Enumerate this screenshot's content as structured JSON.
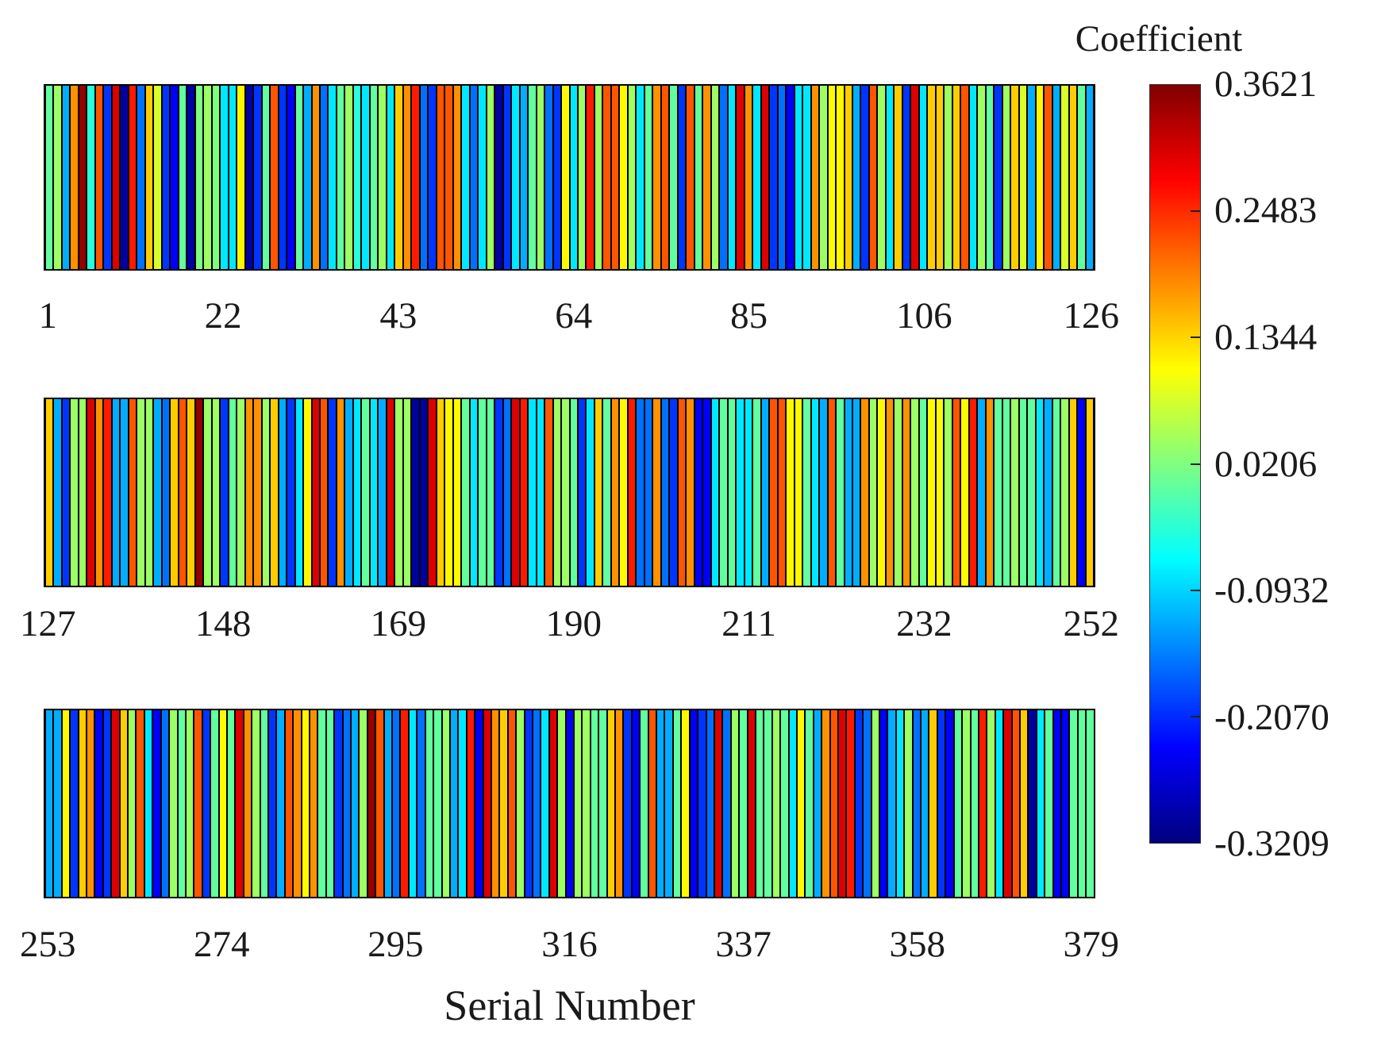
{
  "chart_data": {
    "type": "heatmap",
    "title": "",
    "xlabel": "Serial Number",
    "grid": false,
    "colorbar": {
      "label": "Coefficient",
      "colormap": "jet",
      "min": -0.3209,
      "max": 0.3621,
      "tick_labels": [
        "0.3621",
        "0.2483",
        "0.1344",
        "0.0206",
        "-0.0932",
        "-0.2070",
        "-0.3209"
      ]
    },
    "rows": [
      {
        "start": 1,
        "end": 126,
        "tick_serials": [
          1,
          22,
          43,
          64,
          85,
          106,
          126
        ],
        "values": [
          0.0,
          0.04,
          -0.12,
          0.18,
          0.35,
          -0.04,
          0.22,
          -0.2,
          0.3,
          -0.3,
          0.26,
          -0.16,
          0.14,
          0.08,
          -0.2,
          -0.24,
          0.0,
          -0.3,
          0.02,
          0.04,
          0.02,
          -0.08,
          -0.08,
          0.11,
          -0.3,
          -0.2,
          0.0,
          0.22,
          -0.2,
          -0.24,
          0.0,
          -0.12,
          0.18,
          -0.16,
          -0.08,
          0.0,
          0.04,
          -0.04,
          -0.08,
          0.0,
          0.04,
          -0.08,
          0.14,
          0.18,
          0.26,
          -0.16,
          -0.2,
          0.22,
          0.22,
          0.18,
          -0.08,
          -0.16,
          -0.08,
          0.04,
          -0.3,
          -0.2,
          -0.08,
          -0.12,
          0.0,
          0.04,
          -0.16,
          -0.2,
          0.11,
          -0.08,
          0.04,
          0.26,
          0.04,
          0.22,
          0.22,
          0.11,
          0.04,
          -0.08,
          0.0,
          0.18,
          0.22,
          0.0,
          -0.2,
          0.22,
          0.0,
          0.18,
          0.04,
          -0.16,
          -0.08,
          0.3,
          0.18,
          -0.08,
          0.3,
          -0.2,
          -0.16,
          -0.24,
          -0.08,
          -0.08,
          0.18,
          0.04,
          0.11,
          0.11,
          0.14,
          -0.12,
          -0.2,
          0.22,
          0.04,
          -0.08,
          0.14,
          -0.2,
          0.3,
          -0.08,
          0.14,
          0.14,
          0.04,
          0.14,
          0.22,
          -0.08,
          0.04,
          0.0,
          -0.2,
          0.04,
          0.14,
          0.08,
          -0.12,
          0.11,
          0.22,
          -0.12,
          0.08,
          0.14,
          0.0,
          -0.12
        ]
      },
      {
        "start": 127,
        "end": 252,
        "tick_serials": [
          127,
          148,
          169,
          190,
          211,
          232,
          252
        ],
        "values": [
          0.14,
          -0.12,
          -0.2,
          0.04,
          0.04,
          0.3,
          0.18,
          0.26,
          -0.12,
          -0.12,
          0.22,
          0.04,
          0.04,
          -0.12,
          -0.16,
          0.14,
          0.22,
          0.14,
          0.35,
          0.04,
          0.04,
          -0.2,
          0.0,
          0.04,
          0.18,
          0.18,
          0.04,
          0.14,
          -0.12,
          -0.2,
          -0.08,
          0.11,
          0.3,
          0.22,
          -0.2,
          0.18,
          -0.12,
          -0.08,
          0.0,
          -0.08,
          -0.12,
          0.3,
          0.04,
          0.04,
          -0.3,
          -0.3,
          0.3,
          0.14,
          0.11,
          0.11,
          0.0,
          -0.08,
          0.0,
          0.0,
          -0.2,
          -0.16,
          0.3,
          0.26,
          -0.08,
          -0.08,
          0.22,
          0.04,
          0.04,
          0.0,
          -0.2,
          -0.08,
          0.14,
          0.0,
          0.18,
          0.11,
          0.26,
          -0.16,
          -0.16,
          0.18,
          -0.16,
          -0.2,
          0.22,
          0.18,
          -0.24,
          -0.24,
          -0.08,
          0.0,
          0.0,
          -0.08,
          -0.08,
          0.0,
          -0.12,
          0.22,
          0.22,
          0.11,
          0.11,
          0.0,
          -0.08,
          -0.12,
          0.22,
          0.0,
          -0.12,
          -0.12,
          0.18,
          0.04,
          0.11,
          0.18,
          0.04,
          0.18,
          0.04,
          0.0,
          0.11,
          0.11,
          0.04,
          0.22,
          0.11,
          0.26,
          -0.12,
          0.18,
          0.0,
          0.0,
          0.04,
          0.0,
          0.0,
          -0.08,
          -0.12,
          0.0,
          0.04,
          0.14,
          -0.24,
          0.14
        ]
      },
      {
        "start": 253,
        "end": 379,
        "tick_serials": [
          253,
          274,
          295,
          316,
          337,
          358,
          379
        ],
        "values": [
          -0.12,
          -0.12,
          0.11,
          -0.2,
          0.14,
          0.18,
          -0.24,
          -0.2,
          0.3,
          0.14,
          0.04,
          0.22,
          -0.08,
          -0.24,
          -0.16,
          0.04,
          0.0,
          0.04,
          0.22,
          -0.2,
          0.0,
          0.11,
          0.0,
          0.3,
          0.18,
          0.04,
          0.0,
          -0.2,
          -0.12,
          0.22,
          0.18,
          0.11,
          0.18,
          0.0,
          0.0,
          -0.2,
          -0.16,
          -0.12,
          0.04,
          0.35,
          0.22,
          -0.12,
          -0.16,
          0.26,
          -0.08,
          -0.16,
          0.0,
          0.0,
          0.04,
          -0.12,
          -0.08,
          0.26,
          -0.24,
          0.3,
          0.18,
          0.14,
          0.22,
          0.04,
          -0.2,
          -0.16,
          -0.08,
          0.3,
          0.04,
          -0.24,
          0.04,
          0.04,
          0.0,
          0.0,
          0.14,
          0.18,
          -0.2,
          -0.24,
          0.0,
          0.22,
          -0.12,
          -0.12,
          0.0,
          0.11,
          -0.24,
          -0.2,
          -0.16,
          0.3,
          -0.16,
          0.04,
          0.0,
          0.3,
          0.0,
          0.0,
          0.04,
          0.0,
          -0.08,
          0.11,
          0.0,
          -0.12,
          0.18,
          0.22,
          0.3,
          0.26,
          -0.2,
          -0.16,
          0.04,
          -0.24,
          -0.12,
          -0.08,
          0.04,
          -0.16,
          -0.12,
          0.14,
          -0.2,
          -0.24,
          0.0,
          0.04,
          0.0,
          0.26,
          0.04,
          -0.08,
          0.3,
          0.22,
          0.14,
          -0.3,
          -0.08,
          0.0,
          -0.24,
          -0.24,
          0.0,
          0.0,
          0.0
        ]
      }
    ]
  }
}
